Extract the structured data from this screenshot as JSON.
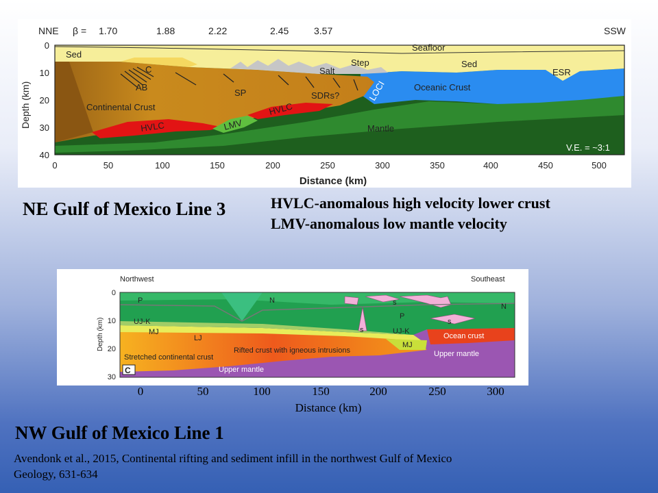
{
  "top_figure": {
    "direction_left": "NNE",
    "direction_right": "SSW",
    "beta_label": "β =",
    "beta_values": [
      "1.70",
      "1.88",
      "2.22",
      "2.45",
      "3.57"
    ],
    "y_ticks": [
      "0",
      "10",
      "20",
      "30",
      "40"
    ],
    "x_ticks": [
      "0",
      "50",
      "100",
      "150",
      "200",
      "250",
      "300",
      "350",
      "400",
      "450",
      "500"
    ],
    "y_axis_label": "Depth (km)",
    "x_axis_label": "Distance (km)",
    "labels": {
      "seafloor": "Seafloor",
      "sed_left": "Sed",
      "sed_right": "Sed",
      "c": "C",
      "salt": "Salt",
      "step": "Step",
      "ab": "AB",
      "sp": "SP",
      "sdrs": "SDRs?",
      "loci": "LOCI",
      "oceanic_crust": "Oceanic Crust",
      "esr": "ESR",
      "continental_crust": "Continental Crust",
      "hvlc_left": "HVLC",
      "hvlc_mid": "HVLC",
      "lmv": "LMV",
      "mantle": "Mantle",
      "ve": "V.E. = ~3:1"
    }
  },
  "captions": {
    "title1": "NE Gulf of Mexico Line 3",
    "note1": "HVLC-anomalous high velocity lower crust",
    "note2": "LMV-anomalous low mantle velocity",
    "title2": "NW Gulf of Mexico Line 1",
    "citation_line1": "Avendonk  et al., 2015, Continental rifting and sediment infill in the northwest Gulf of Mexico",
    "citation_line2": "Geology, 631-634"
  },
  "bottom_figure": {
    "direction_left": "Northwest",
    "direction_right": "Southeast",
    "y_ticks": [
      "0",
      "10",
      "20",
      "30"
    ],
    "y_axis_label": "Depth (km)",
    "x_ticks": [
      "0",
      "50",
      "100",
      "150",
      "200",
      "250",
      "300"
    ],
    "x_axis_label": "Distance  (km)",
    "panel_letter": "C",
    "labels": {
      "p_left": "P",
      "n_mid": "N",
      "s_top": "s",
      "s_top2": "s",
      "n_right": "N",
      "p_right": "P",
      "ujk_left": "UJ-K",
      "mj_left": "MJ",
      "lj": "LJ",
      "s_diapir": "s",
      "ujk_right": "UJ-K",
      "mj_right": "MJ",
      "ocean_crust": "Ocean crust",
      "stretched": "Stretched continental crust",
      "rifted": "Rifted crust with igneous intrusions",
      "upper_mantle_left": "Upper mantle",
      "upper_mantle_right": "Upper mantle"
    }
  },
  "colors": {
    "sediment": "#f7ef9c",
    "continental_crust": "#c88a1c",
    "oceanic_crust": "#2f8ef0",
    "mantle": "#1f6b1f",
    "hvlc": "#e11414",
    "upper_mantle": "#9a55b0",
    "stretched_crust": "#f5a515",
    "ocean_crust_red": "#e8401c",
    "salt_pink": "#f0b0d8"
  }
}
